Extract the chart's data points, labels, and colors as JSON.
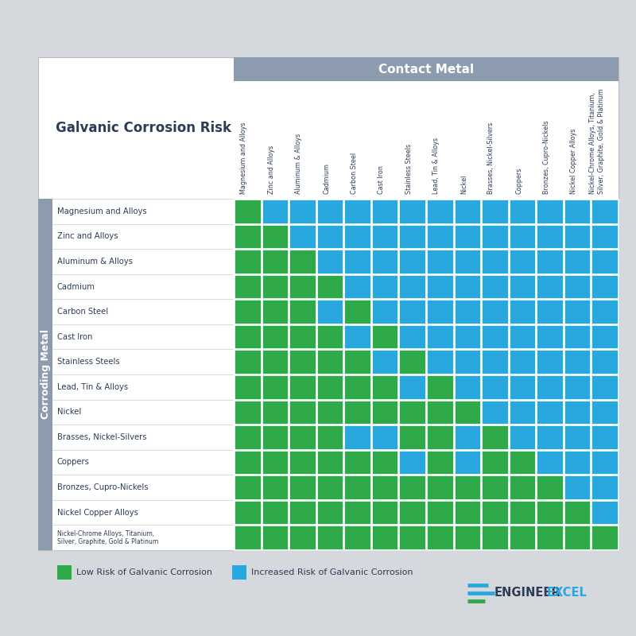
{
  "metals": [
    "Magnesium and Alloys",
    "Zinc and Alloys",
    "Aluminum & Alloys",
    "Cadmium",
    "Carbon Steel",
    "Cast Iron",
    "Stainless Steels",
    "Lead, Tin & Alloys",
    "Nickel",
    "Brasses, Nickel-Silvers",
    "Coppers",
    "Bronzes, Cupro-Nickels",
    "Nickel Copper Alloys",
    "Nickel-Chrome Alloys, Titanium,\nSilver, Graphite, Gold & Platinum"
  ],
  "grid": [
    [
      1,
      0,
      0,
      0,
      0,
      0,
      0,
      0,
      0,
      0,
      0,
      0,
      0,
      0
    ],
    [
      1,
      1,
      0,
      0,
      0,
      0,
      0,
      0,
      0,
      0,
      0,
      0,
      0,
      0
    ],
    [
      1,
      1,
      1,
      0,
      0,
      0,
      0,
      0,
      0,
      0,
      0,
      0,
      0,
      0
    ],
    [
      1,
      1,
      1,
      1,
      0,
      0,
      0,
      0,
      0,
      0,
      0,
      0,
      0,
      0
    ],
    [
      1,
      1,
      1,
      0,
      1,
      0,
      0,
      0,
      0,
      0,
      0,
      0,
      0,
      0
    ],
    [
      1,
      1,
      1,
      1,
      0,
      1,
      0,
      0,
      0,
      0,
      0,
      0,
      0,
      0
    ],
    [
      1,
      1,
      1,
      1,
      1,
      0,
      1,
      0,
      0,
      0,
      0,
      0,
      0,
      0
    ],
    [
      1,
      1,
      1,
      1,
      1,
      1,
      0,
      1,
      0,
      0,
      0,
      0,
      0,
      0
    ],
    [
      1,
      1,
      1,
      1,
      1,
      1,
      1,
      1,
      1,
      0,
      0,
      0,
      0,
      0
    ],
    [
      1,
      1,
      1,
      1,
      0,
      0,
      1,
      1,
      0,
      1,
      0,
      0,
      0,
      0
    ],
    [
      1,
      1,
      1,
      1,
      1,
      1,
      0,
      1,
      0,
      1,
      1,
      0,
      0,
      0
    ],
    [
      1,
      1,
      1,
      1,
      1,
      1,
      1,
      1,
      1,
      1,
      1,
      1,
      0,
      0
    ],
    [
      1,
      1,
      1,
      1,
      1,
      1,
      1,
      1,
      1,
      1,
      1,
      1,
      1,
      0
    ],
    [
      1,
      1,
      1,
      1,
      1,
      1,
      1,
      1,
      1,
      1,
      1,
      1,
      1,
      1
    ]
  ],
  "green_color": "#2eaa4a",
  "blue_color": "#29a8e0",
  "header_bg": "#8c9bad",
  "title_text": "Galvanic Corrosion Risk",
  "contact_metal_label": "Contact Metal",
  "corroding_metal_label": "Corroding Metal",
  "legend_low": "Low Risk of Galvanic Corrosion",
  "legend_high": "Increased Risk of Galvanic Corrosion",
  "bg_color": "#d5d8dc"
}
